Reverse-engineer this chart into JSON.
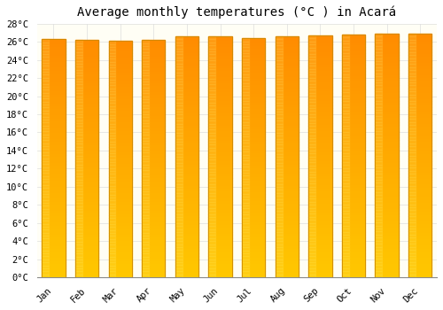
{
  "title": "Average monthly temperatures (°C ) in Acará",
  "months": [
    "Jan",
    "Feb",
    "Mar",
    "Apr",
    "May",
    "Jun",
    "Jul",
    "Aug",
    "Sep",
    "Oct",
    "Nov",
    "Dec"
  ],
  "values": [
    26.3,
    26.2,
    26.1,
    26.2,
    26.6,
    26.6,
    26.4,
    26.6,
    26.7,
    26.8,
    26.9,
    26.9
  ],
  "bar_color_mid": "#FFA500",
  "bar_color_bright": "#FFD040",
  "bar_edge_color": "#CC8800",
  "ylim": [
    0,
    28
  ],
  "yticks": [
    0,
    2,
    4,
    6,
    8,
    10,
    12,
    14,
    16,
    18,
    20,
    22,
    24,
    26,
    28
  ],
  "background_color": "#FFFFFF",
  "plot_bg_color": "#FFFEF5",
  "grid_color": "#DDDDDD",
  "title_fontsize": 10,
  "tick_fontsize": 7.5,
  "font_family": "monospace"
}
